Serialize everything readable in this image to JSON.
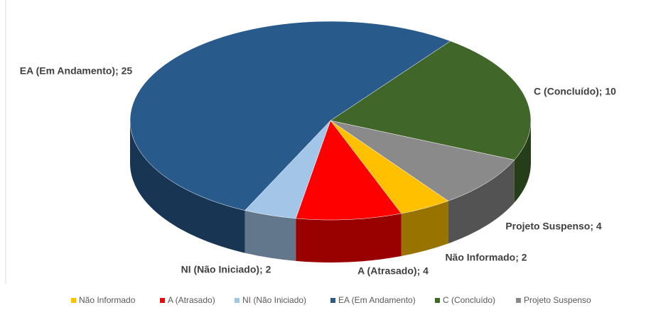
{
  "chart_data": {
    "type": "pie3d",
    "categories": [
      "Não Informado",
      "A (Atrasado)",
      "NI (Não Iniciado)",
      "EA (Em Andamento)",
      "C (Concluído)",
      "Projeto Suspenso"
    ],
    "values": [
      2,
      4,
      2,
      25,
      10,
      4
    ],
    "value_labels": [
      "Não Informado; 2",
      "A (Atrasado); 4",
      "NI (Não Iniciado); 2",
      "EA (Em Andamento); 25",
      "C (Concluído); 10",
      "Projeto Suspenso; 4"
    ],
    "colors": [
      "#ffc000",
      "#ff0000",
      "#a3c6e8",
      "#285a8c",
      "#40662a",
      "#8a8a8a"
    ],
    "legend": "bottom"
  }
}
